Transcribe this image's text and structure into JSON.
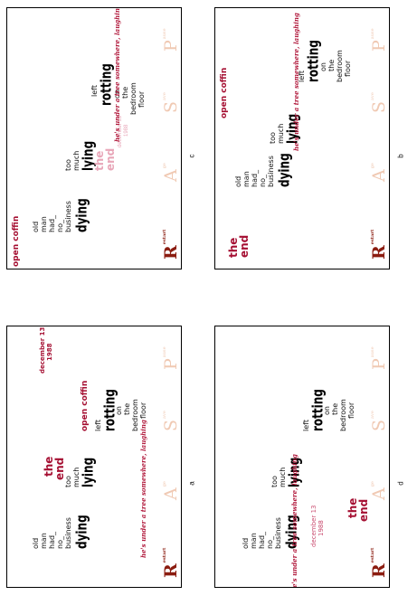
{
  "words": {
    "old": "old",
    "man": "man",
    "had": "had_",
    "no": "no_",
    "business": "business",
    "dying": "dying",
    "too": "too",
    "much": "much",
    "lying": "lying",
    "left": "left",
    "rotting": "rotting",
    "on": "on",
    "the": "the",
    "bedroom": "bedroom",
    "floor": "floor"
  },
  "phrases": {
    "the_end_1": "the",
    "the_end_2": "end",
    "open_coffin": "open coffin",
    "tree": "he's under a tree somewhere, laughing",
    "date_1": "december 13",
    "date_2": "1988"
  },
  "buttons": {
    "restart": {
      "letter": "R",
      "sup": "estart"
    },
    "age": {
      "letter": "A",
      "sup": "ge"
    },
    "save": {
      "letter": "S",
      "sup": "ave"
    },
    "pause": {
      "letter": "P",
      "sup": "ause"
    }
  },
  "captions": {
    "a": "a",
    "b": "b",
    "c": "c",
    "d": "d"
  },
  "colors": {
    "accent_red": "#a50f32",
    "restart": "#8b1c10",
    "faded_buttons": "#f0c9b3",
    "faded_pink": "#e8a6b8"
  }
}
